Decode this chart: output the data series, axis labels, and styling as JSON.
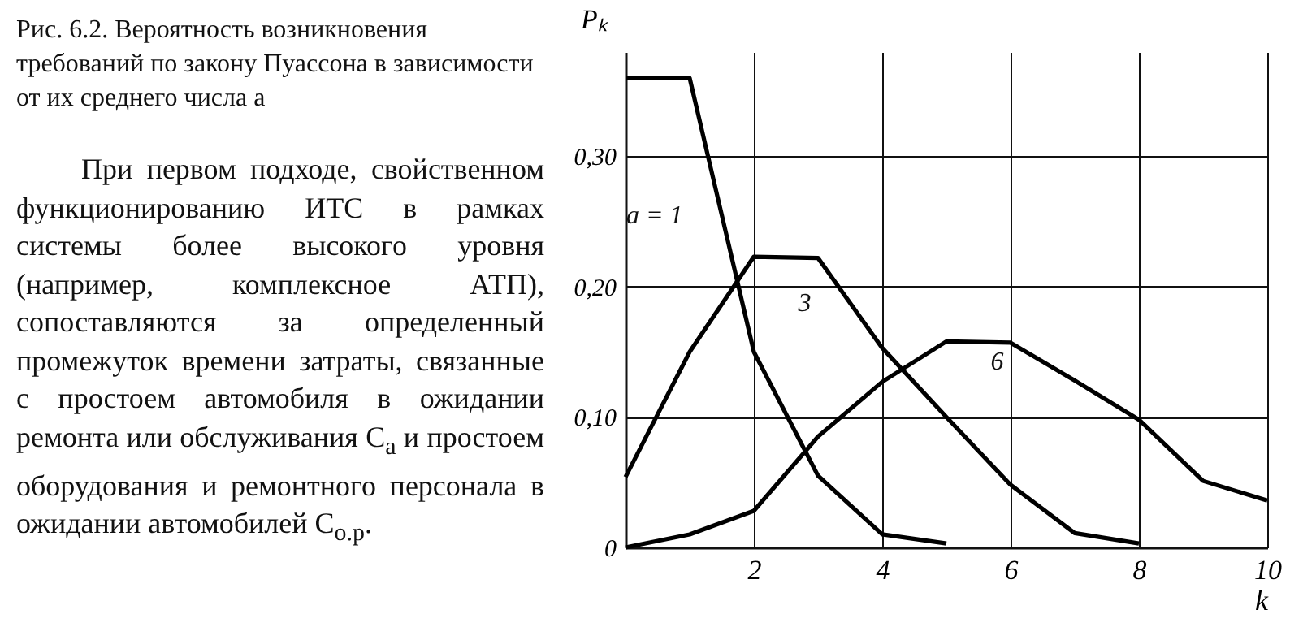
{
  "chart_data": {
    "type": "line",
    "title": "Рис. 6.2. Вероятность возникновения требований по закону Пуассона в зависимости от их среднего числа a",
    "annotations": [
      "При первом подходе, свойственном функционированию ИТС в рамках системы более высокого уровня (например, комплексное АТП), сопоставляются за определенный промежуток времени затраты, связанные с простоем автомобиля в ожидании ремонта или обслуживания C$_{а}$ и простоем оборудования и ремонтного персонала в ожидании автомобилей C$_{о.р}$."
    ],
    "xlabel": "k",
    "ylabel": "Pₖ",
    "series": [
      {
        "name": "a = 1",
        "color": "#000000",
        "x": [
          0,
          1,
          2,
          3,
          4,
          5
        ],
        "values": [
          0.36,
          0.36,
          0.15,
          0.055,
          0.01,
          0.003
        ]
      },
      {
        "name": "3",
        "color": "#000000",
        "x": [
          0,
          1,
          2,
          3,
          4,
          5,
          6,
          7,
          8
        ],
        "values": [
          0.054,
          0.15,
          0.223,
          0.222,
          0.153,
          0.1,
          0.048,
          0.011,
          0.003
        ]
      },
      {
        "name": "6",
        "color": "#000000",
        "x": [
          0,
          1,
          2,
          3,
          4,
          5,
          6,
          7,
          8,
          9,
          10
        ],
        "values": [
          0,
          0.01,
          0.028,
          0.085,
          0.127,
          0.158,
          0.157,
          0.128,
          0.098,
          0.051,
          0.036
        ]
      }
    ],
    "xlim": [
      0,
      10
    ],
    "ylim": [
      0,
      0.38
    ],
    "xticks": [
      {
        "value": 0,
        "label": null
      },
      2,
      4,
      6,
      8,
      10
    ],
    "yticks": [
      0,
      {
        "value": 0.1,
        "label": "0,10"
      },
      {
        "value": 0.2,
        "label": "0,20"
      },
      {
        "value": 0.3,
        "label": "0,30"
      }
    ],
    "grid": true,
    "line_style": "solid"
  }
}
